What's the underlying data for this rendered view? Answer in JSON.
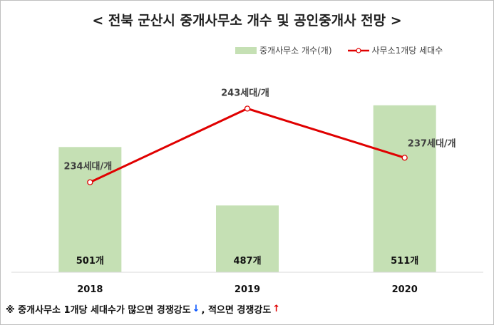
{
  "title": "< 전북 군산시 중개사무소 개수 및 공인중개사 전망 >",
  "legend": {
    "bar_label": "중개사무소 개수(개)",
    "line_label": "사무소1개당 세대수"
  },
  "colors": {
    "bar": "#c5e0b4",
    "line": "#e00000",
    "marker_fill": "#ffffff",
    "up_arrow": "#e00000",
    "down_arrow": "#0050ff"
  },
  "chart_data": {
    "type": "bar",
    "categories": [
      "2018",
      "2019",
      "2020"
    ],
    "series": [
      {
        "name": "중개사무소 개수(개)",
        "type": "bar",
        "values": [
          501,
          487,
          511
        ],
        "labels": [
          "501개",
          "487개",
          "511개"
        ],
        "axis": "left",
        "ylim": [
          471,
          520
        ]
      },
      {
        "name": "사무소1개당 세대수",
        "type": "line",
        "values": [
          234,
          243,
          237
        ],
        "labels": [
          "234세대/개",
          "243세대/개",
          "237세대/개"
        ],
        "axis": "right",
        "ylim": [
          223,
          248
        ]
      }
    ],
    "xlabel": "",
    "ylabel": "",
    "grid": false,
    "legend_position": "top-right"
  },
  "footnote": {
    "prefix": "※ 중개사무소 1개당 세대수가 많으면 경쟁강도",
    "down_arrow": "↓",
    "middle": ", 적으면 경쟁강도",
    "up_arrow": "↑"
  }
}
